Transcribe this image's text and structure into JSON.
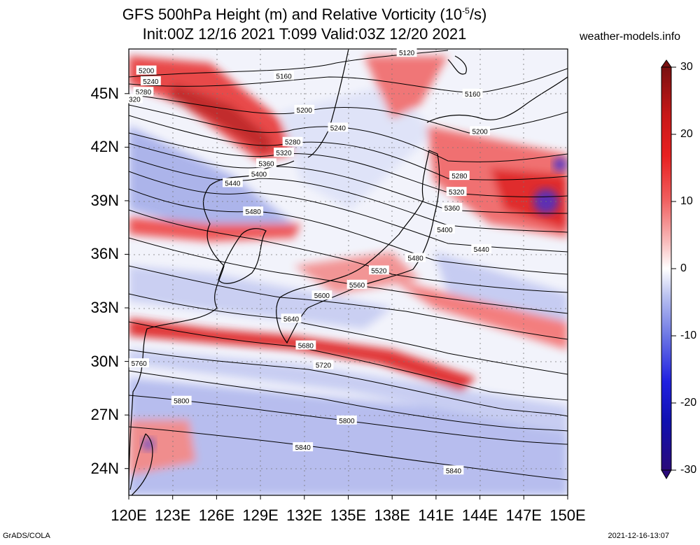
{
  "header": {
    "title_line1": "GFS 500hPa Height (m) and Relative Vorticity (10",
    "title_exp": "-5",
    "title_line1_end": "/s)",
    "title_line2": "Init:00Z 12/16 2021 T:099 Valid:03Z 12/20 2021",
    "site": "weather-models.info"
  },
  "footer": {
    "software": "GrADS/COLA",
    "timestamp": "2021-12-16-13:07"
  },
  "map": {
    "lat_range": [
      22.5,
      47.5
    ],
    "lon_range": [
      120,
      150
    ],
    "lat_ticks": [
      "45N",
      "42N",
      "39N",
      "36N",
      "33N",
      "30N",
      "27N",
      "24N"
    ],
    "lat_values": [
      45,
      42,
      39,
      36,
      33,
      30,
      27,
      24
    ],
    "lon_ticks": [
      "120E",
      "123E",
      "126E",
      "129E",
      "132E",
      "135E",
      "138E",
      "141E",
      "144E",
      "147E",
      "150E"
    ],
    "lon_values": [
      120,
      123,
      126,
      129,
      132,
      135,
      138,
      141,
      144,
      147,
      150
    ],
    "contour_interval_m": 40,
    "contour_labels": [
      {
        "text": "5120",
        "lon": 139.0,
        "lat": 47.3
      },
      {
        "text": "5200",
        "lon": 121.2,
        "lat": 46.3
      },
      {
        "text": "5240",
        "lon": 121.5,
        "lat": 45.7
      },
      {
        "text": "5280",
        "lon": 121.0,
        "lat": 45.1
      },
      {
        "text": "320",
        "lon": 120.4,
        "lat": 44.7
      },
      {
        "text": "5160",
        "lon": 130.6,
        "lat": 46.0
      },
      {
        "text": "5200",
        "lon": 132.0,
        "lat": 44.1
      },
      {
        "text": "5240",
        "lon": 134.3,
        "lat": 43.1
      },
      {
        "text": "5280",
        "lon": 131.2,
        "lat": 42.3
      },
      {
        "text": "5320",
        "lon": 130.6,
        "lat": 41.7
      },
      {
        "text": "5360",
        "lon": 129.4,
        "lat": 41.1
      },
      {
        "text": "5400",
        "lon": 128.9,
        "lat": 40.5
      },
      {
        "text": "5440",
        "lon": 127.1,
        "lat": 40.0
      },
      {
        "text": "5480",
        "lon": 128.5,
        "lat": 38.4
      },
      {
        "text": "5160",
        "lon": 143.5,
        "lat": 45.0
      },
      {
        "text": "5200",
        "lon": 144.0,
        "lat": 42.9
      },
      {
        "text": "5280",
        "lon": 142.6,
        "lat": 40.4
      },
      {
        "text": "5320",
        "lon": 142.4,
        "lat": 39.5
      },
      {
        "text": "5360",
        "lon": 142.1,
        "lat": 38.6
      },
      {
        "text": "5400",
        "lon": 141.6,
        "lat": 37.4
      },
      {
        "text": "5440",
        "lon": 144.1,
        "lat": 36.3
      },
      {
        "text": "5480",
        "lon": 139.6,
        "lat": 35.8
      },
      {
        "text": "5520",
        "lon": 137.1,
        "lat": 35.1
      },
      {
        "text": "5560",
        "lon": 135.6,
        "lat": 34.3
      },
      {
        "text": "5600",
        "lon": 133.2,
        "lat": 33.7
      },
      {
        "text": "5640",
        "lon": 131.1,
        "lat": 32.4
      },
      {
        "text": "5680",
        "lon": 132.1,
        "lat": 30.9
      },
      {
        "text": "5720",
        "lon": 133.3,
        "lat": 29.8
      },
      {
        "text": "5760",
        "lon": 120.7,
        "lat": 29.9
      },
      {
        "text": "5800",
        "lon": 123.6,
        "lat": 27.8
      },
      {
        "text": "5800",
        "lon": 134.9,
        "lat": 26.7
      },
      {
        "text": "5840",
        "lon": 131.9,
        "lat": 25.2
      },
      {
        "text": "5840",
        "lon": 142.2,
        "lat": 23.9
      }
    ]
  },
  "colorbar": {
    "ticks": [
      "30",
      "20",
      "10",
      "0",
      "-10",
      "-20",
      "-30"
    ],
    "values": [
      30,
      20,
      10,
      0,
      -10,
      -20,
      -30
    ],
    "colors": [
      "#7a1010",
      "#c81818",
      "#e82020",
      "#f06060",
      "#f8a8a8",
      "#fde6e6",
      "#ffffff",
      "#e0e4f8",
      "#a8b0ec",
      "#6a74e4",
      "#2020e0",
      "#1010b0",
      "#2a0a7a"
    ]
  }
}
